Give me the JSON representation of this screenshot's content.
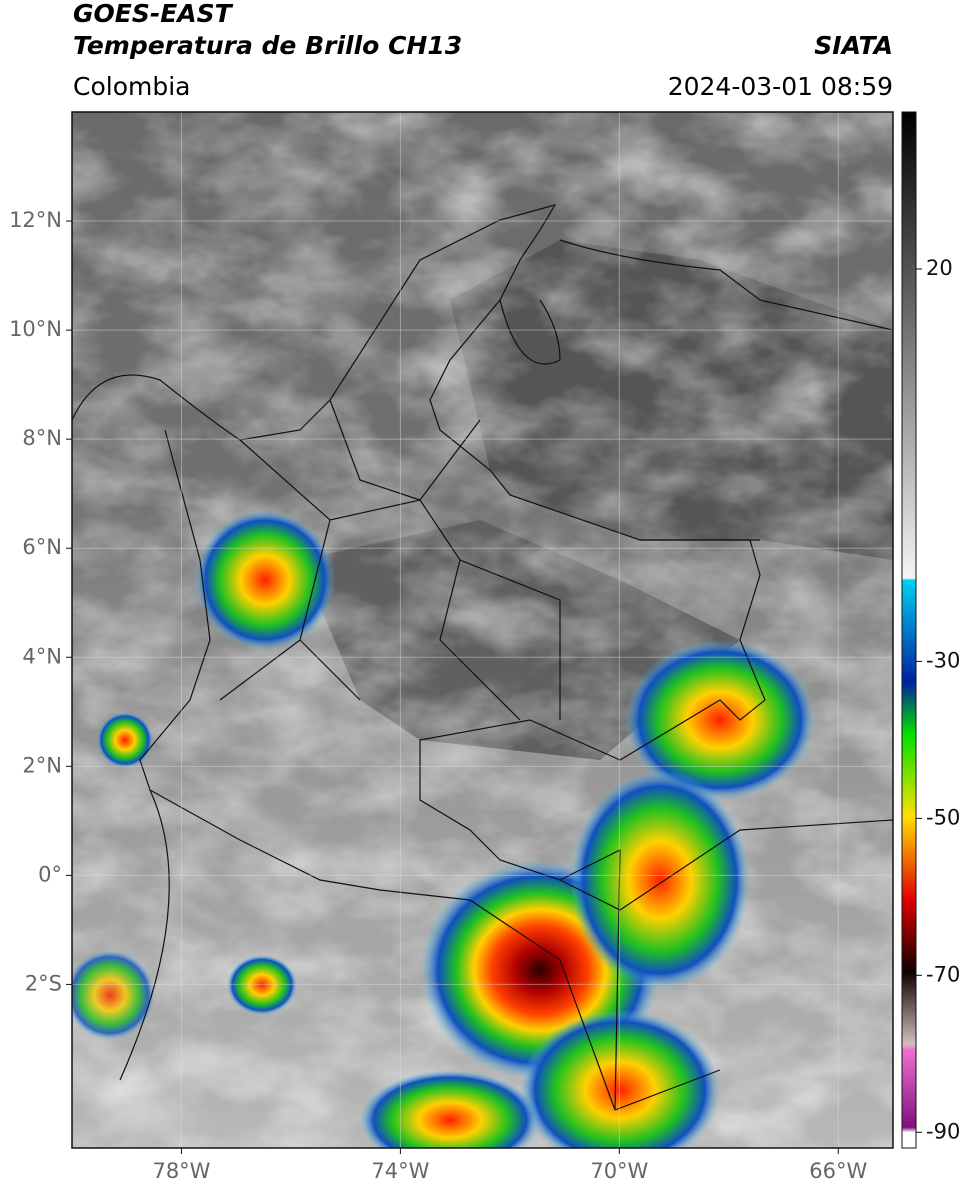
{
  "header": {
    "title": "GOES-EAST",
    "subtitle": "Temperatura de Brillo CH13",
    "source": "SIATA",
    "region": "Colombia",
    "timestamp": "2024-03-01 08:59"
  },
  "map": {
    "lon_range": [
      -80,
      -65
    ],
    "lat_range": [
      -5,
      14
    ],
    "lat_ticks": [
      {
        "value": 12,
        "label": "12°N"
      },
      {
        "value": 10,
        "label": "10°N"
      },
      {
        "value": 8,
        "label": "8°N"
      },
      {
        "value": 6,
        "label": "6°N"
      },
      {
        "value": 4,
        "label": "4°N"
      },
      {
        "value": 2,
        "label": "2°N"
      },
      {
        "value": 0,
        "label": "0°"
      },
      {
        "value": -2,
        "label": "2°S"
      }
    ],
    "lon_ticks": [
      {
        "value": -78,
        "label": "78°W"
      },
      {
        "value": -74,
        "label": "74°W"
      },
      {
        "value": -70,
        "label": "70°W"
      },
      {
        "value": -66,
        "label": "66°W"
      }
    ]
  },
  "colorbar": {
    "range": [
      -92,
      40
    ],
    "ticks": [
      20,
      -30,
      -50,
      -70,
      -90
    ]
  }
}
